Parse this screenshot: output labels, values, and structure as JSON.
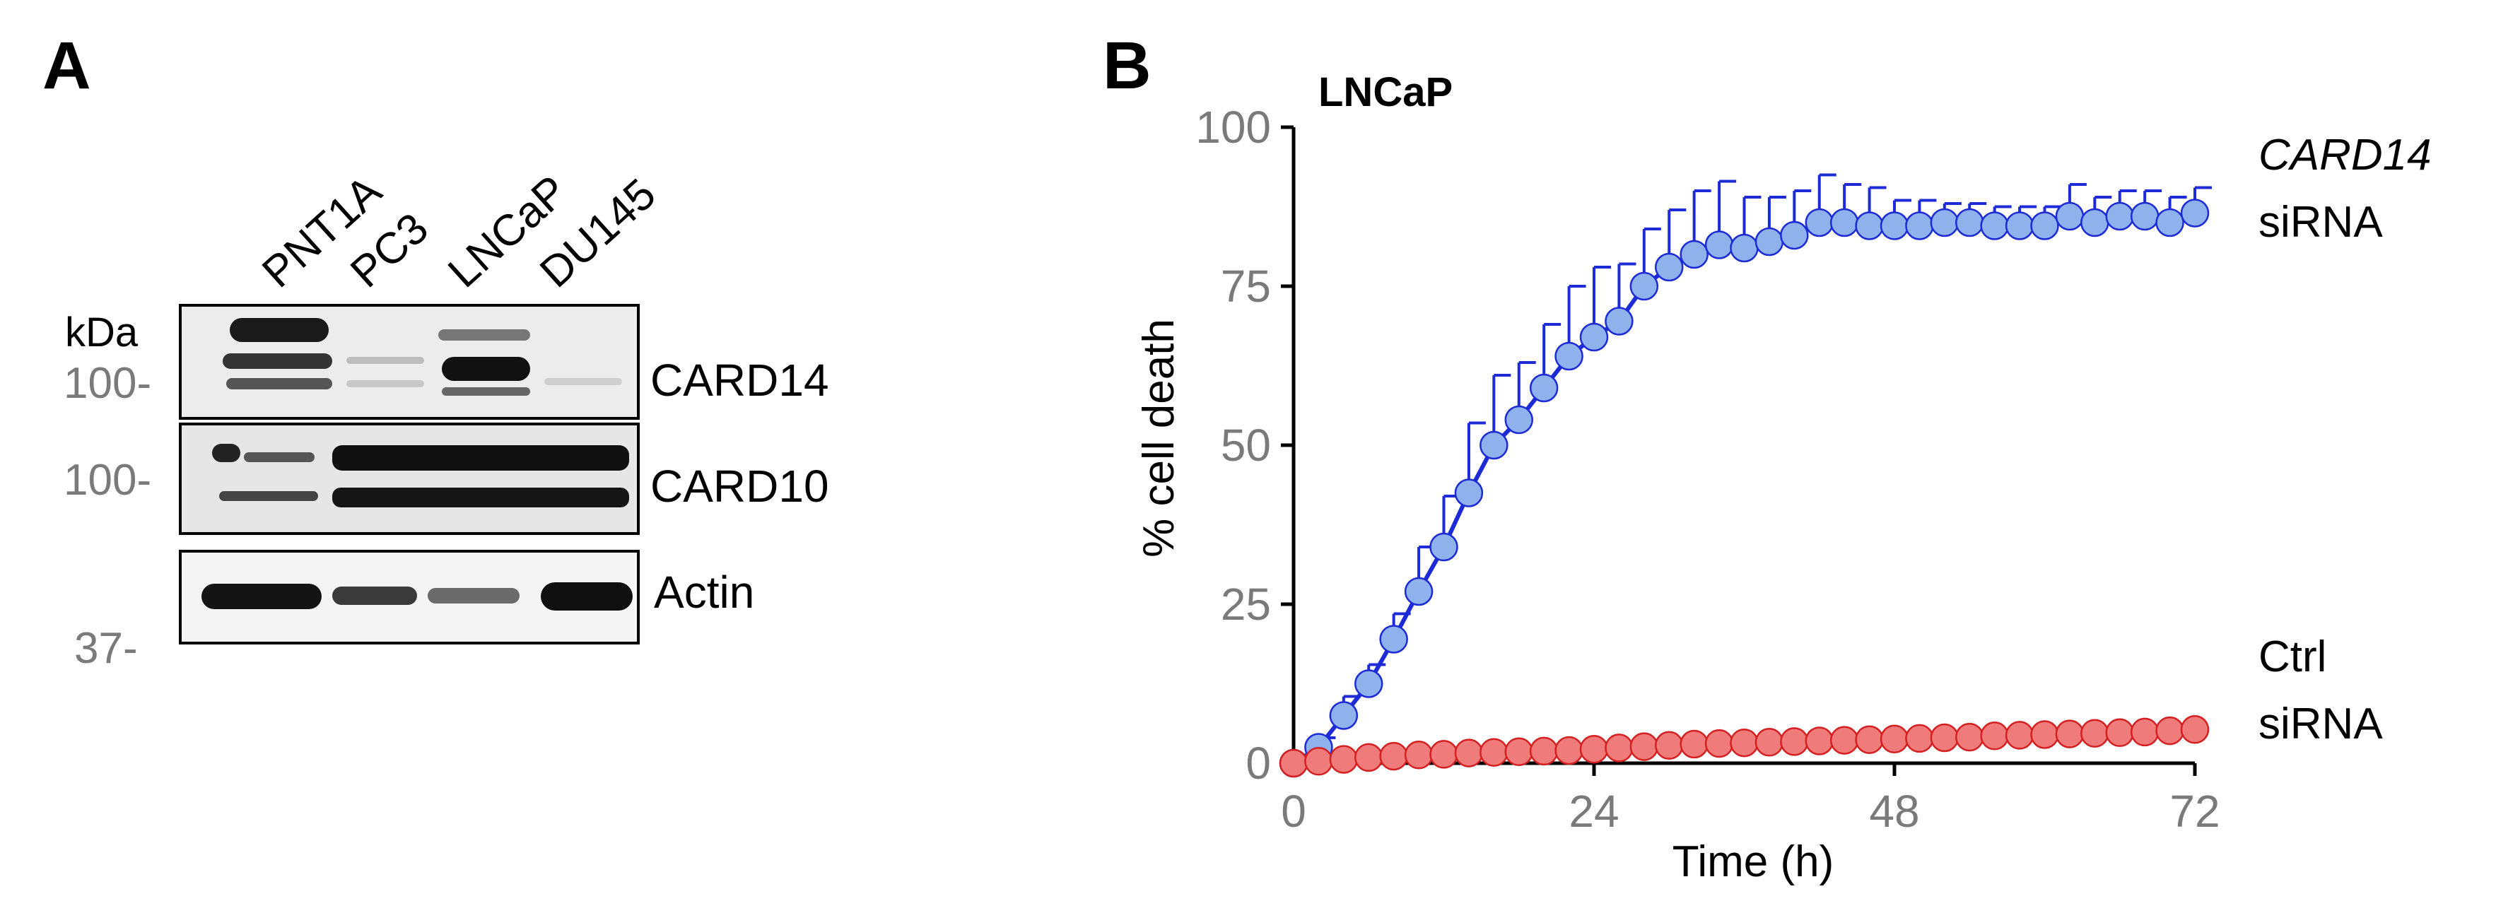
{
  "panel_a": {
    "letter": "A",
    "lanes": [
      "PNT1A",
      "PC3",
      "LNCaP",
      "DU145"
    ],
    "unit_label": "kDa",
    "blots": [
      {
        "protein": "CARD14",
        "marker": "100-"
      },
      {
        "protein": "CARD10",
        "marker": "100-"
      },
      {
        "protein": "Actin",
        "marker": "37-"
      }
    ]
  },
  "panel_b": {
    "letter": "B",
    "cell_line": "LNCaP",
    "series_labels": {
      "card14_line1": "CARD14",
      "card14_line2": "siRNA",
      "ctrl_line1": "Ctrl",
      "ctrl_line2": "siRNA"
    }
  },
  "colors": {
    "card14_fill": "#8fb1ec",
    "card14_line": "#1c2bd6",
    "ctrl_fill": "#f07b7b",
    "ctrl_line": "#d42020",
    "axis": "#000000",
    "tick_label": "#7a7a7a"
  },
  "chart_data": {
    "type": "line",
    "title": "LNCaP",
    "xlabel": "Time (h)",
    "ylabel": "% cell death",
    "xlim": [
      0,
      72
    ],
    "ylim": [
      0,
      100
    ],
    "xticks": [
      0,
      24,
      48,
      72
    ],
    "yticks": [
      0,
      25,
      50,
      75,
      100
    ],
    "grid": false,
    "legend": "inline-right",
    "x": [
      0,
      2,
      4,
      6,
      8,
      10,
      12,
      14,
      16,
      18,
      20,
      22,
      24,
      26,
      28,
      30,
      32,
      34,
      36,
      38,
      40,
      42,
      44,
      46,
      48,
      50,
      52,
      54,
      56,
      58,
      60,
      62,
      64,
      66,
      68,
      70,
      72
    ],
    "series": [
      {
        "name": "CARD14 siRNA",
        "values": [
          0,
          2.5,
          7.5,
          12.5,
          19.5,
          27,
          34,
          42.5,
          50,
          54,
          59,
          64,
          67,
          69.5,
          75,
          78,
          80,
          81.5,
          81,
          82,
          83,
          85,
          85,
          84.5,
          84.5,
          84.5,
          85,
          85,
          84.5,
          84.5,
          84.5,
          86,
          85,
          86,
          86,
          85,
          86.5
        ],
        "error": [
          0,
          1.5,
          3,
          3,
          4,
          7,
          8,
          11,
          11,
          9,
          10,
          11,
          11,
          9,
          9,
          9,
          10,
          10,
          8,
          7,
          7,
          7.5,
          6,
          6,
          4,
          4,
          3,
          3,
          3,
          3,
          3,
          5,
          4,
          4,
          4,
          4,
          4
        ]
      },
      {
        "name": "Ctrl siRNA",
        "values": [
          0,
          0.3,
          0.6,
          0.9,
          1.1,
          1.3,
          1.4,
          1.6,
          1.7,
          1.8,
          1.9,
          2.0,
          2.2,
          2.4,
          2.6,
          2.8,
          3.0,
          3.1,
          3.2,
          3.3,
          3.4,
          3.5,
          3.6,
          3.7,
          3.8,
          3.9,
          4.0,
          4.1,
          4.3,
          4.4,
          4.5,
          4.6,
          4.7,
          4.8,
          4.9,
          5.1,
          5.3
        ]
      }
    ]
  }
}
